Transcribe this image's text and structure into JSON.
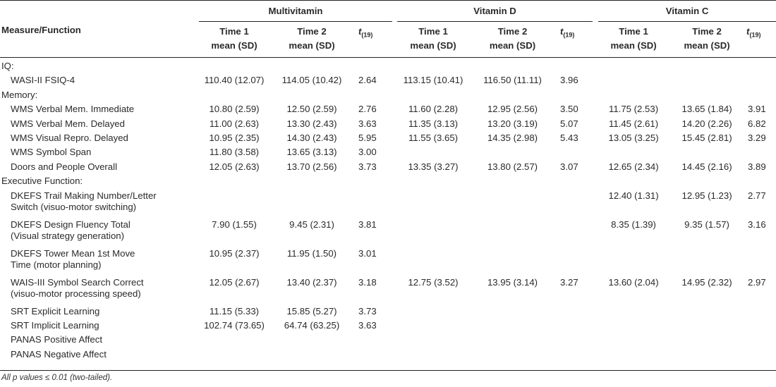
{
  "header": {
    "groups": [
      "Multivitamin",
      "Vitamin D",
      "Vitamin C"
    ],
    "measure_label": "Measure/Function",
    "time1_line1": "Time 1",
    "time1_line2": "mean (SD)",
    "time2_line1": "Time 2",
    "time2_line2": "mean (SD)",
    "t_label": "t",
    "t_sub": "(19)"
  },
  "sections": [
    {
      "label": "IQ:",
      "rows": [
        {
          "measure": [
            "WASI-II FSIQ-4"
          ],
          "mv": [
            "110.40 (12.07)",
            "114.05 (10.42)",
            "2.64"
          ],
          "vd": [
            "113.15 (10.41)",
            "116.50 (11.11)",
            "3.96"
          ],
          "vc": [
            "",
            "",
            ""
          ]
        }
      ]
    },
    {
      "label": "Memory:",
      "rows": [
        {
          "measure": [
            "WMS Verbal Mem. Immediate"
          ],
          "mv": [
            "10.80 (2.59)",
            "12.50 (2.59)",
            "2.76"
          ],
          "vd": [
            "11.60 (2.28)",
            "12.95 (2.56)",
            "3.50"
          ],
          "vc": [
            "11.75 (2.53)",
            "13.65 (1.84)",
            "3.91"
          ]
        },
        {
          "measure": [
            "WMS Verbal Mem. Delayed"
          ],
          "mv": [
            "11.00 (2.63)",
            "13.30 (2.43)",
            "3.63"
          ],
          "vd": [
            "11.35 (3.13)",
            "13.20 (3.19)",
            "5.07"
          ],
          "vc": [
            "11.45 (2.61)",
            "14.20 (2.26)",
            "6.82"
          ]
        },
        {
          "measure": [
            "WMS Visual Repro. Delayed"
          ],
          "mv": [
            "10.95 (2.35)",
            "14.30 (2.43)",
            "5.95"
          ],
          "vd": [
            "11.55 (3.65)",
            "14.35 (2.98)",
            "5.43"
          ],
          "vc": [
            "13.05 (3.25)",
            "15.45 (2.81)",
            "3.29"
          ]
        },
        {
          "measure": [
            "WMS Symbol Span"
          ],
          "mv": [
            "11.80 (3.58)",
            "13.65 (3.13)",
            "3.00"
          ],
          "vd": [
            "",
            "",
            ""
          ],
          "vc": [
            "",
            "",
            ""
          ]
        },
        {
          "measure": [
            "Doors and People Overall"
          ],
          "mv": [
            "12.05 (2.63)",
            "13.70 (2.56)",
            "3.73"
          ],
          "vd": [
            "13.35 (3.27)",
            "13.80 (2.57)",
            "3.07"
          ],
          "vc": [
            "12.65 (2.34)",
            "14.45 (2.16)",
            "3.89"
          ]
        }
      ]
    },
    {
      "label": "Executive Function:",
      "rows": [
        {
          "measure": [
            "DKEFS Trail Making Number/Letter",
            "Switch (visuo-motor switching)"
          ],
          "mv": [
            "",
            "",
            ""
          ],
          "vd": [
            "",
            "",
            ""
          ],
          "vc": [
            "12.40 (1.31)",
            "12.95 (1.23)",
            "2.77"
          ]
        },
        {
          "measure": [
            "DKEFS Design Fluency Total",
            "(Visual strategy generation)"
          ],
          "mv": [
            "7.90 (1.55)",
            "9.45 (2.31)",
            "3.81"
          ],
          "vd": [
            "",
            "",
            ""
          ],
          "vc": [
            "8.35 (1.39)",
            "9.35 (1.57)",
            "3.16"
          ]
        },
        {
          "measure": [
            "DKEFS Tower Mean 1st Move",
            "Time (motor planning)"
          ],
          "mv": [
            "10.95 (2.37)",
            "11.95 (1.50)",
            "3.01"
          ],
          "vd": [
            "",
            "",
            ""
          ],
          "vc": [
            "",
            "",
            ""
          ]
        },
        {
          "measure": [
            "WAIS-III Symbol Search Correct",
            "(visuo-motor processing speed)"
          ],
          "mv": [
            "12.05 (2.67)",
            "13.40 (2.37)",
            "3.18"
          ],
          "vd": [
            "12.75 (3.52)",
            "13.95 (3.14)",
            "3.27"
          ],
          "vc": [
            "13.60 (2.04)",
            "14.95 (2.32)",
            "2.97"
          ]
        },
        {
          "measure": [
            "SRT Explicit Learning"
          ],
          "mv": [
            "11.15 (5.33)",
            "15.85 (5.27)",
            "3.73"
          ],
          "vd": [
            "",
            "",
            ""
          ],
          "vc": [
            "",
            "",
            ""
          ]
        },
        {
          "measure": [
            "SRT Implicit Learning"
          ],
          "mv": [
            "102.74 (73.65)",
            "64.74 (63.25)",
            "3.63"
          ],
          "vd": [
            "",
            "",
            ""
          ],
          "vc": [
            "",
            "",
            ""
          ]
        },
        {
          "measure": [
            "PANAS Positive Affect"
          ],
          "mv": [
            "",
            "",
            ""
          ],
          "vd": [
            "",
            "",
            ""
          ],
          "vc": [
            "",
            "",
            ""
          ]
        },
        {
          "measure": [
            "PANAS Negative Affect"
          ],
          "mv": [
            "",
            "",
            ""
          ],
          "vd": [
            "",
            "",
            ""
          ],
          "vc": [
            "",
            "",
            ""
          ]
        }
      ]
    }
  ],
  "footnote": "All p values ≤ 0.01 (two-tailed)."
}
